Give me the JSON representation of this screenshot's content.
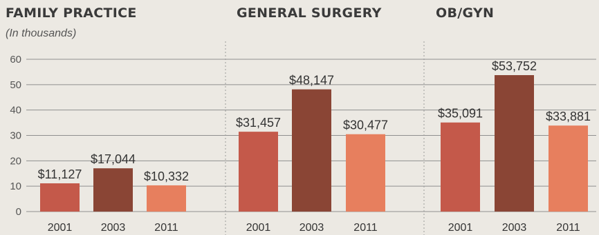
{
  "subtitle": "(In thousands)",
  "colors": {
    "2001": "#c4594a",
    "2003": "#8a4535",
    "2011": "#e77f5e",
    "grid": "#8f8f8f"
  },
  "chart_data": [
    {
      "type": "bar",
      "title": "FAMILY PRACTICE",
      "categories": [
        "2001",
        "2003",
        "2011"
      ],
      "values": [
        11.127,
        17.044,
        10.332
      ],
      "value_labels": [
        "$11,127",
        "$17,044",
        "$10,332"
      ],
      "ylim": [
        0,
        60
      ],
      "yticks": [
        "0",
        "10",
        "20",
        "30",
        "40",
        "50",
        "60"
      ],
      "ylabel": "(In thousands)",
      "grid": true
    },
    {
      "type": "bar",
      "title": "GENERAL SURGERY",
      "categories": [
        "2001",
        "2003",
        "2011"
      ],
      "values": [
        31.457,
        48.147,
        30.477
      ],
      "value_labels": [
        "$31,457",
        "$48,147",
        "$30,477"
      ],
      "ylim": [
        0,
        60
      ],
      "grid": true
    },
    {
      "type": "bar",
      "title": "OB/GYN",
      "categories": [
        "2001",
        "2003",
        "2011"
      ],
      "values": [
        35.091,
        53.752,
        33.881
      ],
      "value_labels": [
        "$35,091",
        "$53,752",
        "$33,881"
      ],
      "ylim": [
        0,
        60
      ],
      "grid": true
    }
  ]
}
